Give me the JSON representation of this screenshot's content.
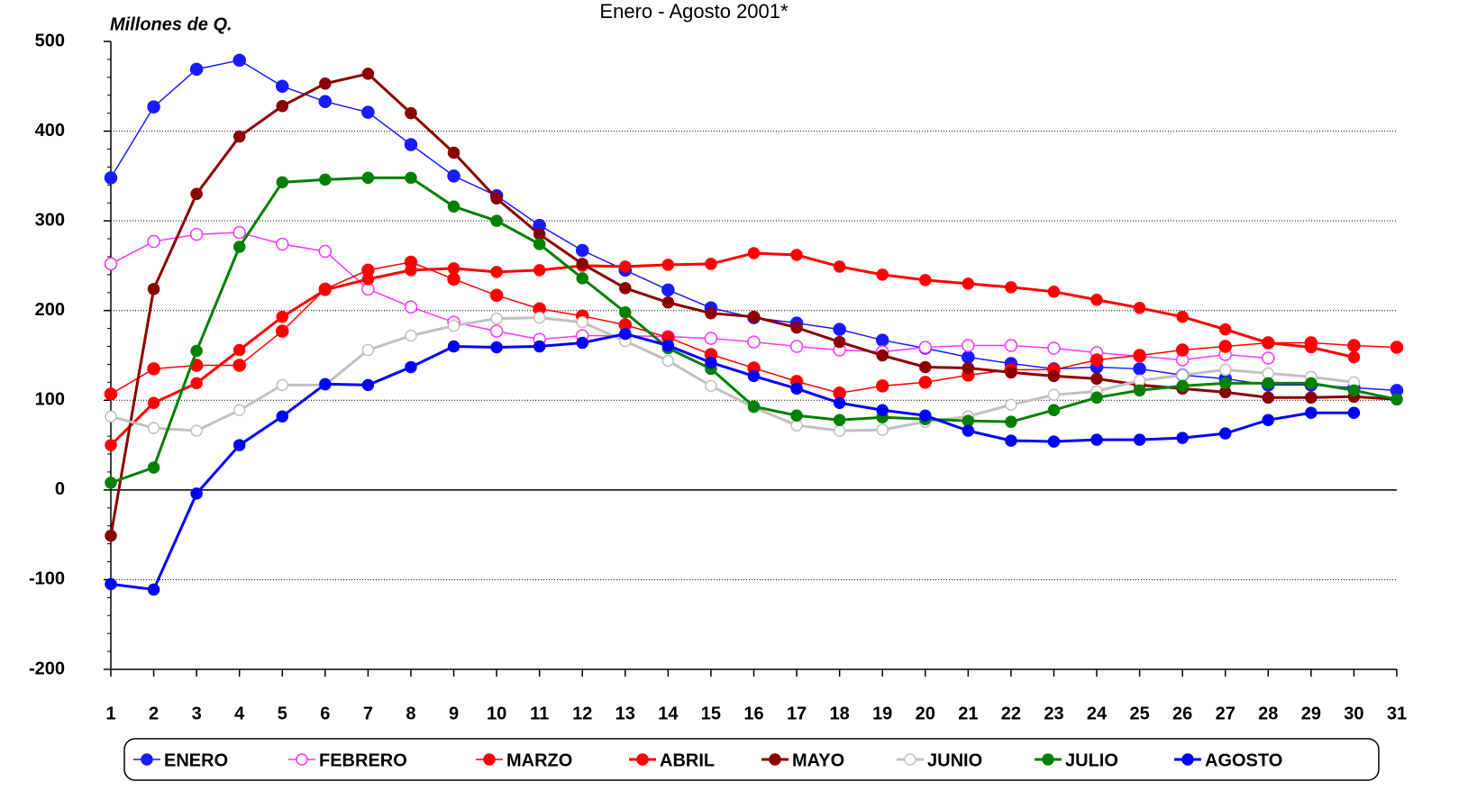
{
  "chart_data": {
    "type": "line",
    "title": "Enero - Agosto 2001*",
    "y_label": "Millones de Q.",
    "x": [
      1,
      2,
      3,
      4,
      5,
      6,
      7,
      8,
      9,
      10,
      11,
      12,
      13,
      14,
      15,
      16,
      17,
      18,
      19,
      20,
      21,
      22,
      23,
      24,
      25,
      26,
      27,
      28,
      29,
      30,
      31
    ],
    "xlim": [
      1,
      31
    ],
    "xticks": [
      1,
      2,
      3,
      4,
      5,
      6,
      7,
      8,
      9,
      10,
      11,
      12,
      13,
      14,
      15,
      16,
      17,
      18,
      19,
      20,
      21,
      22,
      23,
      24,
      25,
      26,
      27,
      28,
      29,
      30,
      31
    ],
    "ylim": [
      -200,
      500
    ],
    "yticks": [
      -200,
      -100,
      0,
      100,
      200,
      300,
      400,
      500
    ],
    "grid": true,
    "legend": "bottom",
    "series": [
      {
        "name": "ENERO",
        "color": "#1a1aff",
        "line_width": 1.5,
        "values": [
          348,
          427,
          469,
          479,
          450,
          433,
          421,
          385,
          350,
          328,
          295,
          267,
          245,
          223,
          203,
          192,
          186,
          179,
          167,
          158,
          148,
          141,
          135,
          137,
          135,
          128,
          124,
          117,
          117,
          114,
          111
        ]
      },
      {
        "name": "FEBRERO",
        "color": "#ff33ff",
        "line_width": 1.5,
        "values": [
          252,
          277,
          285,
          287,
          274,
          266,
          224,
          204,
          187,
          177,
          168,
          172,
          172,
          171,
          169,
          165,
          160,
          156,
          154,
          159,
          161,
          161,
          158,
          153,
          149,
          145,
          151,
          147,
          null,
          null,
          null
        ]
      },
      {
        "name": "MARZO",
        "color": "#ff0000",
        "line_width": 1.5,
        "values": [
          107,
          135,
          139,
          139,
          177,
          224,
          245,
          254,
          235,
          217,
          202,
          194,
          184,
          170,
          151,
          136,
          121,
          108,
          116,
          120,
          128,
          134,
          134,
          145,
          150,
          156,
          160,
          164,
          164,
          161,
          159
        ]
      },
      {
        "name": "ABRIL",
        "color": "#ff0000",
        "line_width": 3,
        "values": [
          50,
          97,
          119,
          156,
          193,
          223,
          235,
          245,
          247,
          243,
          245,
          250,
          249,
          251,
          252,
          264,
          262,
          249,
          240,
          234,
          230,
          226,
          221,
          212,
          203,
          193,
          179,
          164,
          159,
          148,
          null
        ]
      },
      {
        "name": "MAYO",
        "color": "#8b0000",
        "line_width": 3,
        "values": [
          -51,
          224,
          330,
          394,
          428,
          453,
          464,
          420,
          376,
          325,
          285,
          252,
          225,
          209,
          197,
          193,
          181,
          165,
          150,
          137,
          136,
          131,
          127,
          124,
          117,
          113,
          109,
          103,
          103,
          104,
          101
        ]
      },
      {
        "name": "JUNIO",
        "color": "#c0c0c0",
        "line_width": 3,
        "values": [
          82,
          69,
          66,
          89,
          117,
          117,
          156,
          172,
          183,
          191,
          192,
          187,
          166,
          144,
          116,
          92,
          72,
          66,
          67,
          76,
          82,
          95,
          106,
          110,
          122,
          128,
          134,
          130,
          126,
          120,
          null
        ]
      },
      {
        "name": "JULIO",
        "color": "#008000",
        "line_width": 3,
        "values": [
          8,
          25,
          155,
          271,
          343,
          346,
          348,
          348,
          316,
          300,
          274,
          236,
          198,
          158,
          135,
          93,
          83,
          78,
          81,
          79,
          77,
          76,
          89,
          103,
          111,
          116,
          119,
          119,
          119,
          111,
          101
        ]
      },
      {
        "name": "AGOSTO",
        "color": "#0000ff",
        "line_width": 3,
        "values": [
          -105,
          -111,
          -4,
          50,
          82,
          118,
          117,
          137,
          160,
          159,
          160,
          164,
          174,
          161,
          142,
          127,
          113,
          97,
          89,
          83,
          66,
          55,
          54,
          56,
          56,
          58,
          63,
          78,
          86,
          86,
          null
        ]
      }
    ]
  }
}
